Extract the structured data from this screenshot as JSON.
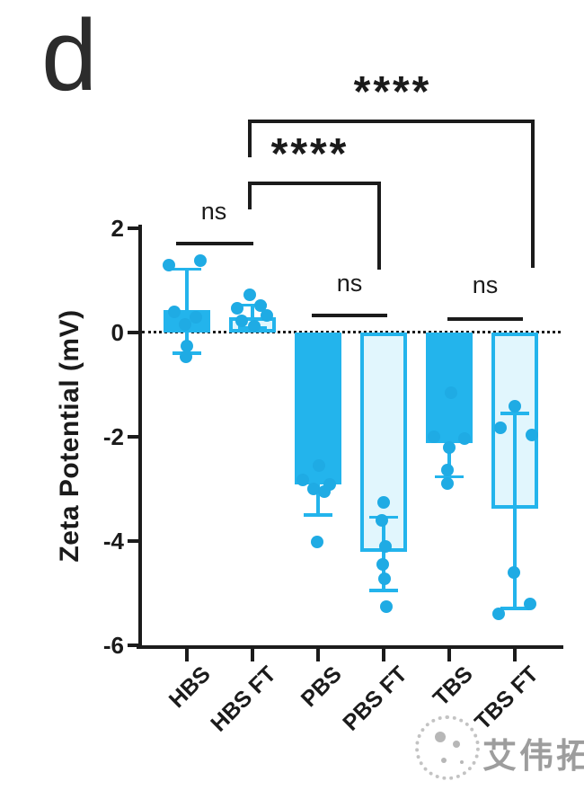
{
  "watermark": {
    "text": "艾伟拓",
    "logo": "dotted-sphere-logo"
  },
  "chart_data": {
    "type": "bar",
    "panel_label": "d",
    "title": "",
    "xlabel": "",
    "ylabel": "Zeta Potential (mV)",
    "ylim": [
      -6,
      2
    ],
    "yticks": [
      2,
      0,
      -2,
      -4,
      -6
    ],
    "zero_line": "dotted",
    "grid": false,
    "legend": "none",
    "categories": [
      "HBS",
      "HBS FT",
      "PBS",
      "PBS FT",
      "TBS",
      "TBS FT"
    ],
    "bars": [
      {
        "category": "HBS",
        "mean": 0.43,
        "error_up": 1.21,
        "error_down": -0.4,
        "style": "solid",
        "points": [
          [
            1.38,
            15
          ],
          [
            1.29,
            -20
          ],
          [
            0.4,
            -14
          ],
          [
            0.3,
            10
          ],
          [
            0.15,
            -2
          ],
          [
            -0.26,
            0
          ],
          [
            -0.46,
            -1
          ]
        ]
      },
      {
        "category": "HBS FT",
        "mean": 0.3,
        "error_up": 0.52,
        "error_down": 0.08,
        "style": "light",
        "points": [
          [
            0.72,
            -3
          ],
          [
            0.52,
            9
          ],
          [
            0.47,
            -17
          ],
          [
            0.32,
            16
          ],
          [
            0.22,
            -12
          ],
          [
            0.12,
            2
          ]
        ]
      },
      {
        "category": "PBS",
        "mean": -2.92,
        "error_up": -2.34,
        "error_down": -3.5,
        "style": "solid",
        "points": [
          [
            -2.55,
            1
          ],
          [
            -2.82,
            -17
          ],
          [
            -2.92,
            13
          ],
          [
            -3.0,
            -5
          ],
          [
            -3.05,
            7
          ],
          [
            -4.02,
            -1
          ]
        ]
      },
      {
        "category": "PBS FT",
        "mean": -4.2,
        "error_up": -3.55,
        "error_down": -4.95,
        "style": "light",
        "points": [
          [
            -3.25,
            0
          ],
          [
            -3.6,
            -2
          ],
          [
            -4.1,
            2
          ],
          [
            -4.45,
            -1
          ],
          [
            -4.72,
            1
          ],
          [
            -5.25,
            3
          ]
        ]
      },
      {
        "category": "TBS",
        "mean": -2.12,
        "error_up": -1.47,
        "error_down": -2.77,
        "style": "solid",
        "points": [
          [
            -1.16,
            2
          ],
          [
            -2.0,
            -17
          ],
          [
            -2.03,
            17
          ],
          [
            -2.2,
            0
          ],
          [
            -2.63,
            -2
          ],
          [
            -2.89,
            -2
          ]
        ]
      },
      {
        "category": "TBS FT",
        "mean": -3.38,
        "error_up": -1.56,
        "error_down": -5.3,
        "style": "light",
        "points": [
          [
            -1.42,
            0
          ],
          [
            -1.82,
            -16
          ],
          [
            -1.96,
            19
          ],
          [
            -4.6,
            -1
          ],
          [
            -5.21,
            17
          ],
          [
            -5.4,
            -18
          ]
        ]
      }
    ],
    "significance": [
      {
        "groups": [
          "HBS",
          "HBS FT"
        ],
        "label": "ns"
      },
      {
        "groups": [
          "HBS FT",
          "PBS FT"
        ],
        "label": "****"
      },
      {
        "groups": [
          "HBS FT",
          "TBS FT"
        ],
        "label": "****"
      },
      {
        "groups": [
          "PBS",
          "PBS FT"
        ],
        "label": "ns"
      },
      {
        "groups": [
          "TBS",
          "TBS FT"
        ],
        "label": "ns"
      }
    ],
    "colors": {
      "solid_bar": "#23b4ec",
      "light_bar_fill": "#e1f6fd",
      "outline": "#23b4ec",
      "point": "#1fabe4",
      "axis": "#1b1b1b"
    }
  }
}
